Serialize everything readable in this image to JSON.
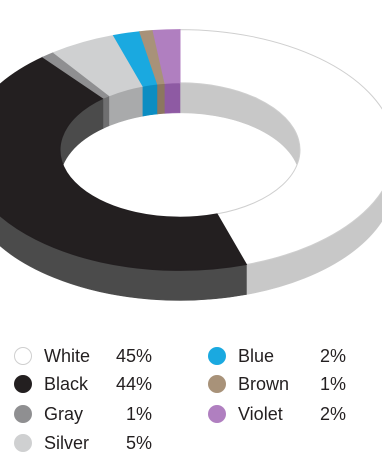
{
  "chart_data": {
    "type": "pie",
    "variant": "3d-donut",
    "title": "",
    "slices": [
      {
        "label": "White",
        "value": 45,
        "display": "45%",
        "color": "#ffffff",
        "side": "#c8c8c8",
        "stroke": "#cfcfcf"
      },
      {
        "label": "Black",
        "value": 44,
        "display": "44%",
        "color": "#231f20",
        "side": "#4b4b4b",
        "stroke": "#231f20"
      },
      {
        "label": "Gray",
        "value": 1,
        "display": "1%",
        "color": "#8f8f91",
        "side": "#6f6f70",
        "stroke": "#8f8f91"
      },
      {
        "label": "Silver",
        "value": 5,
        "display": "5%",
        "color": "#cfd0d1",
        "side": "#a9aaab",
        "stroke": "#cfd0d1"
      },
      {
        "label": "Blue",
        "value": 2,
        "display": "2%",
        "color": "#1aa9e0",
        "side": "#0c8dc2",
        "stroke": "#1aa9e0"
      },
      {
        "label": "Brown",
        "value": 1,
        "display": "1%",
        "color": "#a89279",
        "side": "#8c7760",
        "stroke": "#a89279"
      },
      {
        "label": "Violet",
        "value": 2,
        "display": "2%",
        "color": "#b07fc0",
        "side": "#8e5aa3",
        "stroke": "#b07fc0"
      }
    ],
    "legend_position": "bottom"
  }
}
